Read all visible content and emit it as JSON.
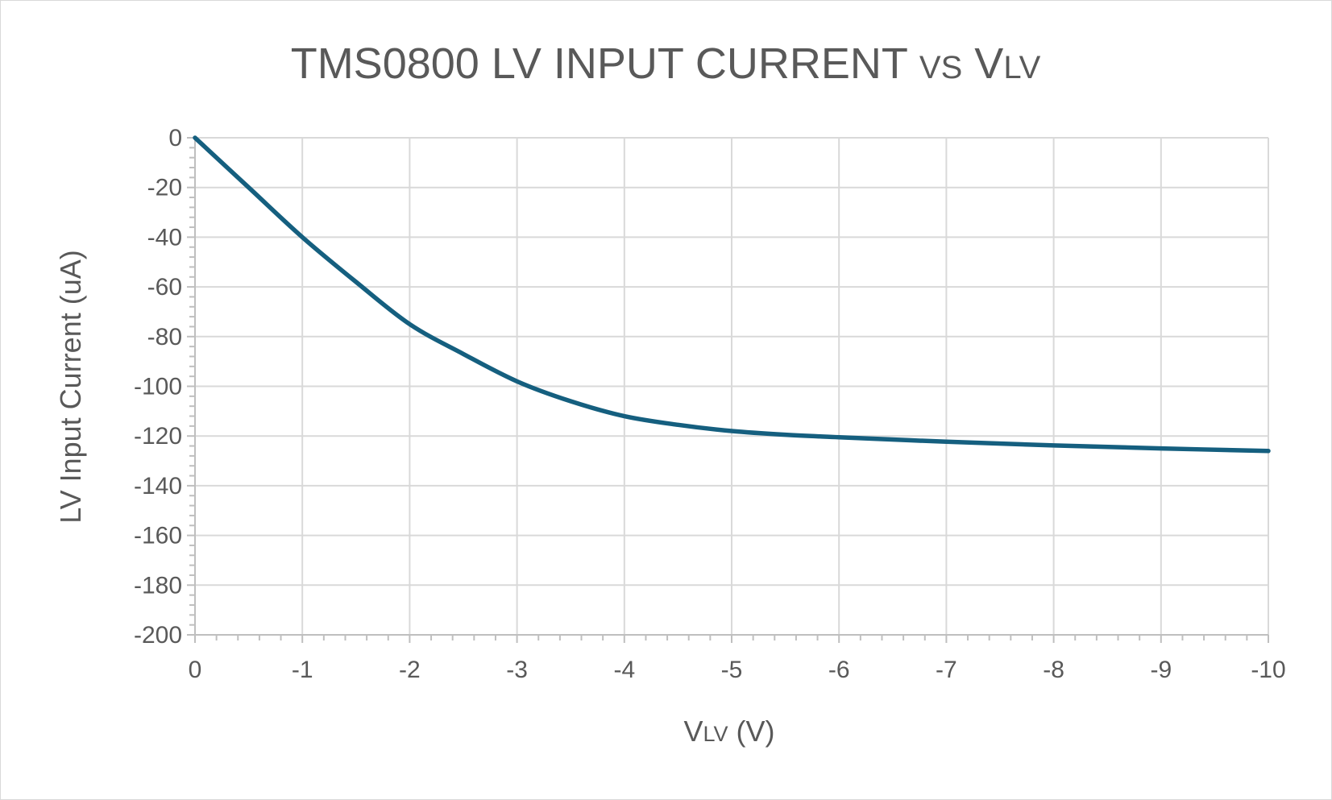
{
  "chart_data": {
    "type": "line",
    "title": {
      "main": "TMS0800 LV INPUT CURRENT ",
      "vs": "VS",
      "v": " V",
      "sub": "LV"
    },
    "xlabel": {
      "v": "V",
      "sub": "LV",
      "rest": " (V)"
    },
    "ylabel": "LV Input Current (uA)",
    "xlim": [
      0,
      -10
    ],
    "ylim": [
      -200,
      0
    ],
    "x_ticks": [
      0,
      -1,
      -2,
      -3,
      -4,
      -5,
      -6,
      -7,
      -8,
      -9,
      -10
    ],
    "y_ticks": [
      0,
      -20,
      -40,
      -60,
      -80,
      -100,
      -120,
      -140,
      -160,
      -180,
      -200
    ],
    "grid": true,
    "legend": "none",
    "series": [
      {
        "color": "#155f7f",
        "x": [
          0,
          -0.5,
          -1,
          -1.5,
          -2,
          -2.5,
          -3,
          -3.5,
          -4,
          -4.5,
          -5,
          -5.5,
          -6,
          -7,
          -8,
          -9,
          -10
        ],
        "y": [
          0,
          -20,
          -40,
          -58,
          -75,
          -87,
          -98,
          -106,
          -112,
          -115.5,
          -118,
          -119.5,
          -120.5,
          -122.3,
          -123.8,
          -125,
          -126
        ]
      }
    ]
  }
}
